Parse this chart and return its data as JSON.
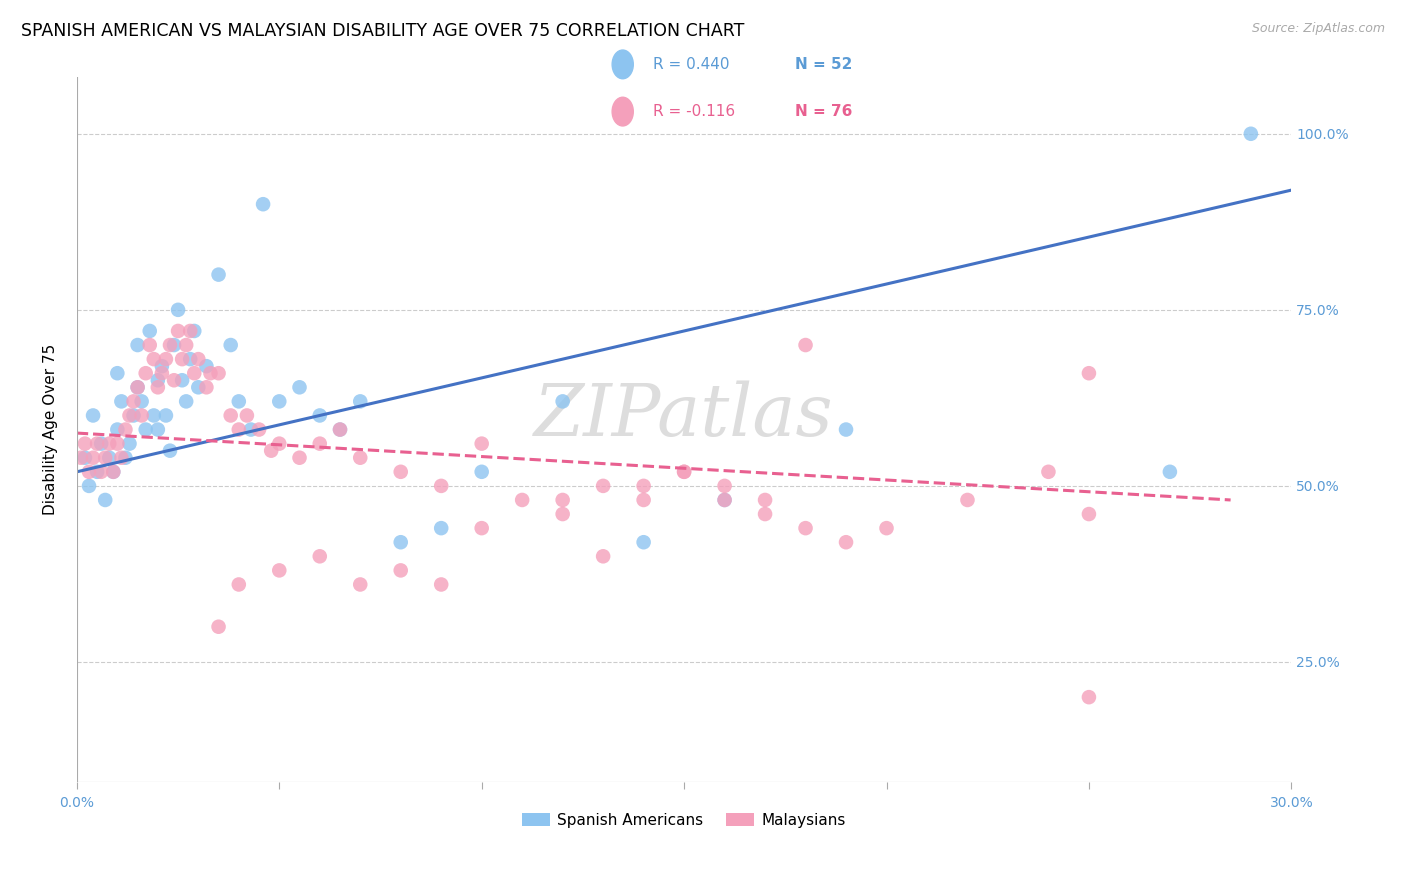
{
  "title": "SPANISH AMERICAN VS MALAYSIAN DISABILITY AGE OVER 75 CORRELATION CHART",
  "source": "Source: ZipAtlas.com",
  "ylabel": "Disability Age Over 75",
  "xlim": [
    0.0,
    0.3
  ],
  "ylim": [
    0.08,
    1.08
  ],
  "xtick_labels": [
    "0.0%",
    "",
    "",
    "",
    "",
    "",
    "30.0%"
  ],
  "xtick_vals": [
    0.0,
    0.05,
    0.1,
    0.15,
    0.2,
    0.25,
    0.3
  ],
  "ytick_labels": [
    "25.0%",
    "50.0%",
    "75.0%",
    "100.0%"
  ],
  "ytick_vals": [
    0.25,
    0.5,
    0.75,
    1.0
  ],
  "blue_color": "#8DC4F0",
  "pink_color": "#F4A0BB",
  "blue_line_color": "#4472C4",
  "pink_line_color": "#E86090",
  "legend_blue_r": "R = 0.440",
  "legend_blue_n": "N = 52",
  "legend_pink_r": "R = -0.116",
  "legend_pink_n": "N = 76",
  "watermark": "ZIPatlas",
  "blue_scatter_x": [
    0.002,
    0.003,
    0.004,
    0.005,
    0.006,
    0.007,
    0.008,
    0.009,
    0.01,
    0.01,
    0.011,
    0.012,
    0.013,
    0.014,
    0.015,
    0.015,
    0.016,
    0.017,
    0.018,
    0.019,
    0.02,
    0.02,
    0.021,
    0.022,
    0.023,
    0.024,
    0.025,
    0.026,
    0.027,
    0.028,
    0.029,
    0.03,
    0.032,
    0.035,
    0.038,
    0.04,
    0.043,
    0.046,
    0.05,
    0.055,
    0.06,
    0.065,
    0.07,
    0.08,
    0.09,
    0.1,
    0.12,
    0.14,
    0.16,
    0.19,
    0.27,
    0.29
  ],
  "blue_scatter_y": [
    0.54,
    0.5,
    0.6,
    0.52,
    0.56,
    0.48,
    0.54,
    0.52,
    0.66,
    0.58,
    0.62,
    0.54,
    0.56,
    0.6,
    0.64,
    0.7,
    0.62,
    0.58,
    0.72,
    0.6,
    0.58,
    0.65,
    0.67,
    0.6,
    0.55,
    0.7,
    0.75,
    0.65,
    0.62,
    0.68,
    0.72,
    0.64,
    0.67,
    0.8,
    0.7,
    0.62,
    0.58,
    0.9,
    0.62,
    0.64,
    0.6,
    0.58,
    0.62,
    0.42,
    0.44,
    0.52,
    0.62,
    0.42,
    0.48,
    0.58,
    0.52,
    1.0
  ],
  "pink_scatter_x": [
    0.001,
    0.002,
    0.003,
    0.004,
    0.005,
    0.006,
    0.007,
    0.008,
    0.009,
    0.01,
    0.011,
    0.012,
    0.013,
    0.014,
    0.015,
    0.016,
    0.017,
    0.018,
    0.019,
    0.02,
    0.021,
    0.022,
    0.023,
    0.024,
    0.025,
    0.026,
    0.027,
    0.028,
    0.029,
    0.03,
    0.032,
    0.033,
    0.035,
    0.038,
    0.04,
    0.042,
    0.045,
    0.048,
    0.05,
    0.055,
    0.06,
    0.065,
    0.07,
    0.08,
    0.09,
    0.1,
    0.11,
    0.12,
    0.13,
    0.14,
    0.15,
    0.16,
    0.17,
    0.18,
    0.19,
    0.2,
    0.035,
    0.04,
    0.05,
    0.06,
    0.07,
    0.08,
    0.09,
    0.1,
    0.12,
    0.13,
    0.14,
    0.15,
    0.16,
    0.17,
    0.18,
    0.25,
    0.25,
    0.22,
    0.24,
    0.25
  ],
  "pink_scatter_y": [
    0.54,
    0.56,
    0.52,
    0.54,
    0.56,
    0.52,
    0.54,
    0.56,
    0.52,
    0.56,
    0.54,
    0.58,
    0.6,
    0.62,
    0.64,
    0.6,
    0.66,
    0.7,
    0.68,
    0.64,
    0.66,
    0.68,
    0.7,
    0.65,
    0.72,
    0.68,
    0.7,
    0.72,
    0.66,
    0.68,
    0.64,
    0.66,
    0.66,
    0.6,
    0.58,
    0.6,
    0.58,
    0.55,
    0.56,
    0.54,
    0.56,
    0.58,
    0.54,
    0.52,
    0.5,
    0.56,
    0.48,
    0.48,
    0.5,
    0.5,
    0.52,
    0.48,
    0.46,
    0.44,
    0.42,
    0.44,
    0.3,
    0.36,
    0.38,
    0.4,
    0.36,
    0.38,
    0.36,
    0.44,
    0.46,
    0.4,
    0.48,
    0.52,
    0.5,
    0.48,
    0.7,
    0.2,
    0.66,
    0.48,
    0.52,
    0.46
  ],
  "blue_trendline_x": [
    0.0,
    0.3
  ],
  "blue_trendline_y": [
    0.52,
    0.92
  ],
  "pink_trendline_x": [
    0.0,
    0.285
  ],
  "pink_trendline_y": [
    0.575,
    0.48
  ],
  "grid_color": "#CCCCCC",
  "title_fontsize": 12.5,
  "axis_label_fontsize": 11,
  "tick_fontsize": 10,
  "watermark_fontsize": 52,
  "watermark_color": "#DDDDDD",
  "right_ytick_color": "#5B9BD5",
  "bottom_xtick_color": "#5B9BD5",
  "legend_r_color_blue": "#5B9BD5",
  "legend_n_color_blue": "#5B9BD5",
  "legend_r_color_pink": "#E86090",
  "legend_n_color_pink": "#E86090"
}
